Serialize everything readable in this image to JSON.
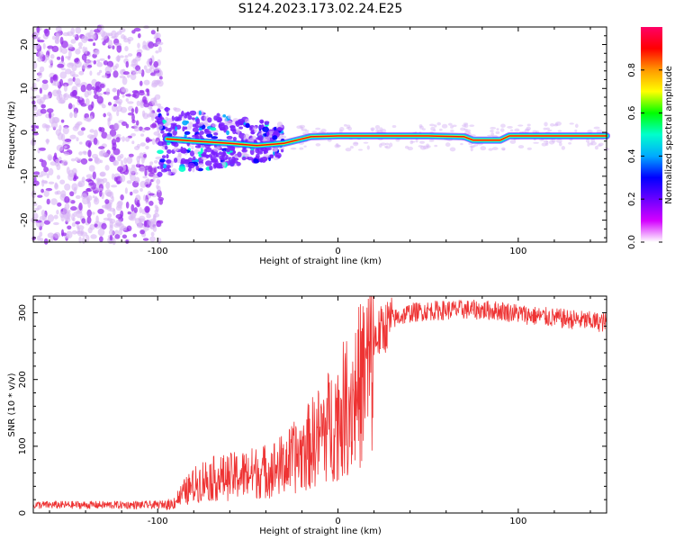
{
  "title": "S124.2023.173.02.24.E25",
  "colors": {
    "snr_line": "#ee3333",
    "scatter_main": "#8a2be2",
    "scatter_faint": "#d8b8f5"
  },
  "chart_data": [
    {
      "type": "heatmap",
      "xlabel": "Height of straight line (km)",
      "ylabel": "Frequency (Hz)",
      "xlim": [
        -169,
        149
      ],
      "ylim": [
        -25,
        24
      ],
      "xticks": [
        -100,
        0,
        100
      ],
      "yticks": [
        -20,
        -10,
        0,
        10,
        20
      ],
      "grid": false,
      "colorbar": {
        "label": "Normalized spectral amplitude",
        "ticks": [
          "0.0",
          "0.2",
          "0.4",
          "0.6",
          "0.8"
        ],
        "range": [
          0,
          1
        ],
        "stops": [
          "#ffffff",
          "#d400ff",
          "#6a00ff",
          "#0000ff",
          "#00aaff",
          "#00ffcc",
          "#00ff00",
          "#ffff00",
          "#ff9900",
          "#ff0000",
          "#ff0066"
        ]
      },
      "ridge": [
        [
          -95,
          -1.5
        ],
        [
          -80,
          -2
        ],
        [
          -60,
          -2.5
        ],
        [
          -45,
          -3
        ],
        [
          -30,
          -2.5
        ],
        [
          -15,
          -1
        ],
        [
          0,
          -0.8
        ],
        [
          50,
          -0.8
        ],
        [
          70,
          -1
        ],
        [
          75,
          -1.8
        ],
        [
          90,
          -1.8
        ],
        [
          95,
          -0.8
        ],
        [
          149,
          -0.8
        ]
      ]
    },
    {
      "type": "line",
      "xlabel": "Height of straight line (km)",
      "ylabel": "SNR (10 * v/v)",
      "xlim": [
        -169,
        149
      ],
      "ylim": [
        0,
        325
      ],
      "xticks": [
        -100,
        0,
        100
      ],
      "yticks": [
        0,
        100,
        200,
        300
      ],
      "grid": false,
      "envelope": [
        [
          -169,
          12
        ],
        [
          -100,
          12
        ],
        [
          -92,
          15
        ],
        [
          -85,
          35
        ],
        [
          -75,
          55
        ],
        [
          -60,
          60
        ],
        [
          -50,
          65
        ],
        [
          -40,
          70
        ],
        [
          -30,
          80
        ],
        [
          -20,
          100
        ],
        [
          -10,
          130
        ],
        [
          0,
          160
        ],
        [
          10,
          200
        ],
        [
          20,
          260
        ],
        [
          30,
          290
        ],
        [
          40,
          300
        ],
        [
          50,
          303
        ],
        [
          70,
          305
        ],
        [
          90,
          303
        ],
        [
          110,
          295
        ],
        [
          130,
          290
        ],
        [
          149,
          285
        ]
      ]
    }
  ]
}
